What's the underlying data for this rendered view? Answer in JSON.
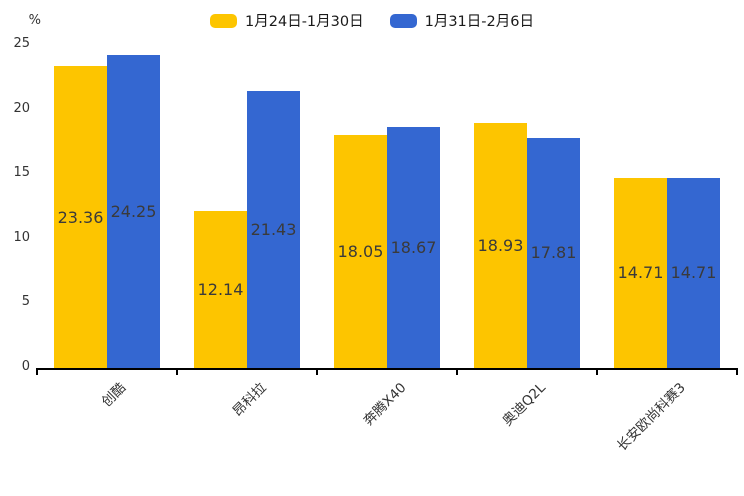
{
  "chart_data": {
    "type": "bar",
    "title": "",
    "unit_label": "%",
    "categories": [
      "创酷",
      "昂科拉",
      "奔腾X40",
      "奥迪Q2L",
      "长安欧尚科赛3"
    ],
    "series": [
      {
        "name": "1月24日-1月30日",
        "color": "#FDC500",
        "values": [
          23.36,
          12.14,
          18.05,
          18.93,
          14.71
        ]
      },
      {
        "name": "1月31日-2月6日",
        "color": "#3467D1",
        "values": [
          24.25,
          21.43,
          18.67,
          17.81,
          14.71
        ]
      }
    ],
    "ylim": [
      0,
      25
    ],
    "yticks": [
      0,
      5,
      10,
      15,
      20,
      25
    ],
    "grid": false,
    "legend_position": "top",
    "value_labels": true
  },
  "colors": {
    "axis": "#000000",
    "tick_label_text": "#333333",
    "value_label_text": "#3a3a3a",
    "background": "#ffffff"
  }
}
